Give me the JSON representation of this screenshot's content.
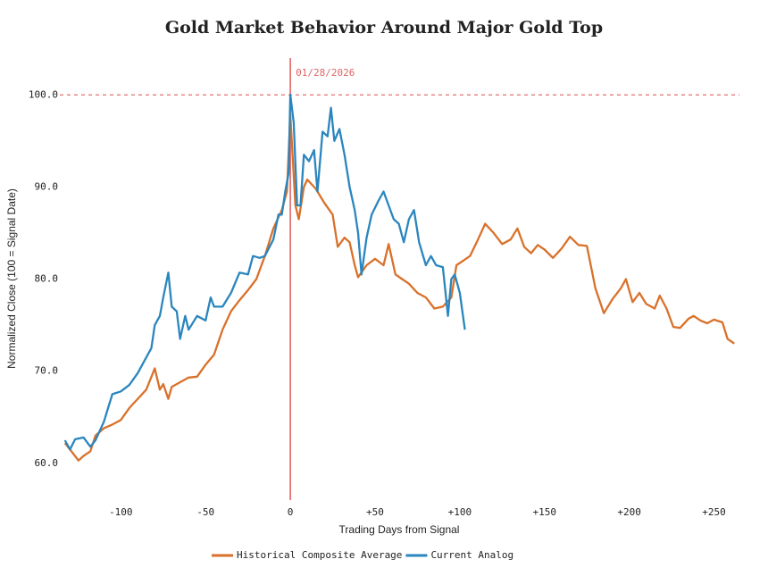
{
  "chart_data": {
    "type": "line",
    "title": "Gold Market Behavior Around Major Gold Top",
    "xlabel": "Trading Days from Signal",
    "ylabel": "Normalized Close (100 = Signal Date)",
    "annotation": {
      "x": 0,
      "text": "01/28/2026"
    },
    "reference_line": 100,
    "xlim": [
      -136,
      265
    ],
    "ylim": [
      56,
      104
    ],
    "xticks": [
      {
        "value": -100,
        "label": "-100"
      },
      {
        "value": -50,
        "label": "-50"
      },
      0,
      {
        "value": 50,
        "label": "+50"
      },
      {
        "value": 100,
        "label": "+100"
      },
      {
        "value": 150,
        "label": "+150"
      },
      {
        "value": 200,
        "label": "+200"
      },
      {
        "value": 250,
        "label": "+250"
      }
    ],
    "yticks": [
      {
        "value": 60,
        "label": "60.0"
      },
      {
        "value": 70,
        "label": "70.0"
      },
      {
        "value": 80,
        "label": "80.0"
      },
      {
        "value": 90,
        "label": "90.0"
      },
      {
        "value": 100,
        "label": "100.0"
      }
    ],
    "series": [
      {
        "name": "Historical Composite Average",
        "color": "#d9712a",
        "x": [
          -133,
          -130,
          -125,
          -122,
          -118,
          -115,
          -110,
          -105,
          -100,
          -95,
          -90,
          -85,
          -80,
          -77,
          -75,
          -72,
          -70,
          -65,
          -60,
          -55,
          -50,
          -45,
          -40,
          -35,
          -30,
          -25,
          -20,
          -15,
          -10,
          -5,
          -2,
          0,
          3,
          5,
          8,
          10,
          15,
          20,
          25,
          28,
          32,
          35,
          38,
          40,
          45,
          50,
          55,
          58,
          62,
          66,
          70,
          75,
          80,
          85,
          90,
          95,
          98,
          102,
          106,
          110,
          115,
          120,
          125,
          130,
          134,
          138,
          142,
          146,
          150,
          155,
          160,
          165,
          170,
          175,
          180,
          185,
          190,
          195,
          198,
          202,
          206,
          210,
          215,
          218,
          222,
          226,
          230,
          235,
          238,
          242,
          246,
          250,
          255,
          258,
          262
        ],
        "values": [
          62.2,
          61.5,
          60.3,
          60.8,
          61.3,
          63,
          63.8,
          64.2,
          64.7,
          66,
          67,
          68,
          70.3,
          68,
          68.6,
          67,
          68.3,
          68.8,
          69.3,
          69.4,
          70.7,
          71.8,
          74.5,
          76.5,
          77.7,
          78.8,
          80,
          82.5,
          85.5,
          87.5,
          89.5,
          97.8,
          88,
          86.5,
          90,
          90.8,
          89.8,
          88.3,
          87,
          83.5,
          84.5,
          84,
          81.5,
          80.2,
          81.5,
          82.2,
          81.5,
          83.8,
          80.5,
          80,
          79.5,
          78.5,
          78,
          76.8,
          77,
          78,
          81.5,
          82,
          82.5,
          84,
          86,
          85,
          83.8,
          84.3,
          85.5,
          83.5,
          82.8,
          83.7,
          83.2,
          82.3,
          83.3,
          84.6,
          83.7,
          83.6,
          79,
          76.3,
          77.8,
          79,
          80,
          77.5,
          78.5,
          77.3,
          76.8,
          78.2,
          76.8,
          74.8,
          74.7,
          75.7,
          76,
          75.5,
          75.2,
          75.6,
          75.3,
          73.5,
          73
        ]
      },
      {
        "name": "Current Analog",
        "color": "#2a86be",
        "x": [
          -133,
          -130,
          -127,
          -122,
          -118,
          -115,
          -110,
          -105,
          -100,
          -95,
          -90,
          -85,
          -82,
          -80,
          -77,
          -75,
          -72,
          -70,
          -67,
          -65,
          -62,
          -60,
          -55,
          -50,
          -47,
          -45,
          -40,
          -35,
          -30,
          -25,
          -22,
          -18,
          -15,
          -10,
          -7,
          -5,
          -3,
          -1,
          0,
          2,
          4,
          6,
          8,
          11,
          14,
          16,
          19,
          22,
          24,
          26,
          29,
          32,
          35,
          38,
          40,
          42,
          45,
          48,
          52,
          55,
          58,
          61,
          64,
          67,
          70,
          73,
          76,
          80,
          83,
          86,
          90,
          93,
          95,
          97,
          100,
          103
        ],
        "values": [
          62.5,
          61.5,
          62.6,
          62.8,
          61.8,
          62.5,
          64.5,
          67.5,
          67.8,
          68.5,
          69.8,
          71.5,
          72.5,
          75,
          76,
          78,
          80.7,
          77,
          76.5,
          73.5,
          76,
          74.5,
          76,
          75.5,
          78,
          77,
          77,
          78.5,
          80.7,
          80.5,
          82.5,
          82.3,
          82.5,
          84.3,
          87,
          87,
          89.5,
          91.5,
          100,
          97,
          88,
          88,
          93.5,
          92.8,
          94,
          89.5,
          96,
          95.5,
          98.6,
          95,
          96.3,
          93.5,
          90,
          87.5,
          85,
          80.5,
          84.5,
          87,
          88.5,
          89.5,
          88,
          86.5,
          86,
          84,
          86.5,
          87.5,
          84,
          81.5,
          82.5,
          81.5,
          81.3,
          76,
          80,
          80.5,
          78.5,
          74.5
        ]
      }
    ]
  }
}
